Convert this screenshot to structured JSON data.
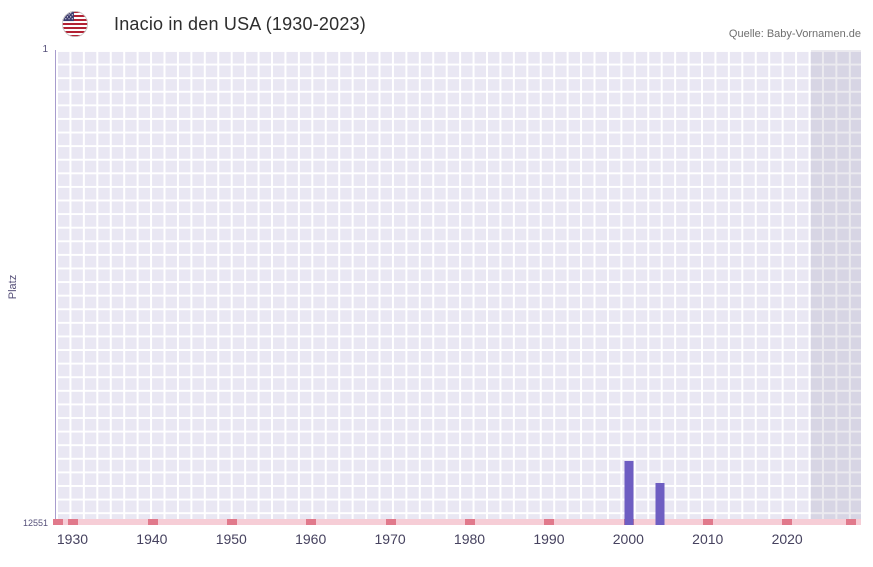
{
  "header": {
    "title": "Inacio in den USA (1930-2023)",
    "source": "Quelle: Baby-Vornamen.de",
    "flag_icon": "us-flag-icon"
  },
  "chart_data": {
    "type": "bar",
    "title": "Inacio in den USA (1930-2023)",
    "ylabel": "Platz",
    "y_axis": {
      "inverted": true,
      "min": 1,
      "max": 12551,
      "top_label": "1",
      "bottom_label": "12551"
    },
    "xlim": [
      1927.8,
      2029.3
    ],
    "x_ticks": [
      1930,
      1940,
      1950,
      1960,
      1970,
      1980,
      1990,
      2000,
      2010,
      2020
    ],
    "bars": [
      {
        "year": 2000,
        "rank": 10850
      },
      {
        "year": 2004,
        "rank": 11450
      }
    ],
    "future_region_start_year": 2023,
    "no_data_marker_years": [
      1928,
      1930,
      1940,
      1950,
      1960,
      1970,
      1980,
      1990,
      2000,
      2010,
      2020,
      2028
    ],
    "grid": true,
    "legend": null,
    "colors": {
      "bar": "#6e5ec2",
      "plot_background": "#e9e7f3",
      "future_region_overlay": "#dcdae7",
      "grid_line": "#ffffff",
      "no_data_strip": "#f6cdd6",
      "no_data_marker": "#e1798b",
      "axis_text": "#46425f"
    }
  }
}
